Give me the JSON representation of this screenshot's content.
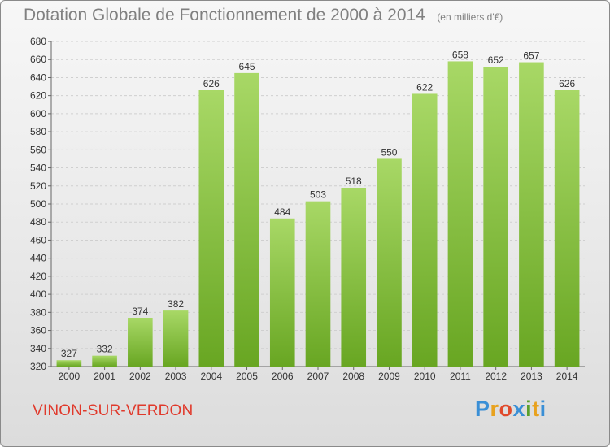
{
  "header": {
    "title": "Dotation Globale de Fonctionnement de 2000 à 2014",
    "unit": "(en milliers d'€)"
  },
  "footer": {
    "commune": "VINON-SUR-VERDON",
    "logo_letters": [
      "P",
      "r",
      "o",
      "x",
      "i",
      "t",
      "i"
    ],
    "logo_colors": [
      "#3a8fd6",
      "#e8a21f",
      "#e04a2c",
      "#3a8fd6",
      "#5aa02c",
      "#e8a21f",
      "#3a8fd6"
    ]
  },
  "colors": {
    "bar_light": "#a8d866",
    "bar_dark": "#68a622",
    "grid": "#cfcfcf",
    "axis_text": "#333333",
    "commune": "#e0392b"
  },
  "chart_data": {
    "type": "bar",
    "title": "Dotation Globale de Fonctionnement de 2000 à 2014",
    "unit": "(en milliers d'€)",
    "xlabel": "",
    "ylabel": "",
    "categories": [
      "2000",
      "2001",
      "2002",
      "2003",
      "2004",
      "2005",
      "2006",
      "2007",
      "2008",
      "2009",
      "2010",
      "2011",
      "2012",
      "2013",
      "2014"
    ],
    "values": [
      327,
      332,
      374,
      382,
      626,
      645,
      484,
      503,
      518,
      550,
      622,
      658,
      652,
      657,
      626
    ],
    "ylim": [
      320,
      680
    ],
    "ytick_step": 20,
    "grid": true,
    "legend": "none"
  }
}
